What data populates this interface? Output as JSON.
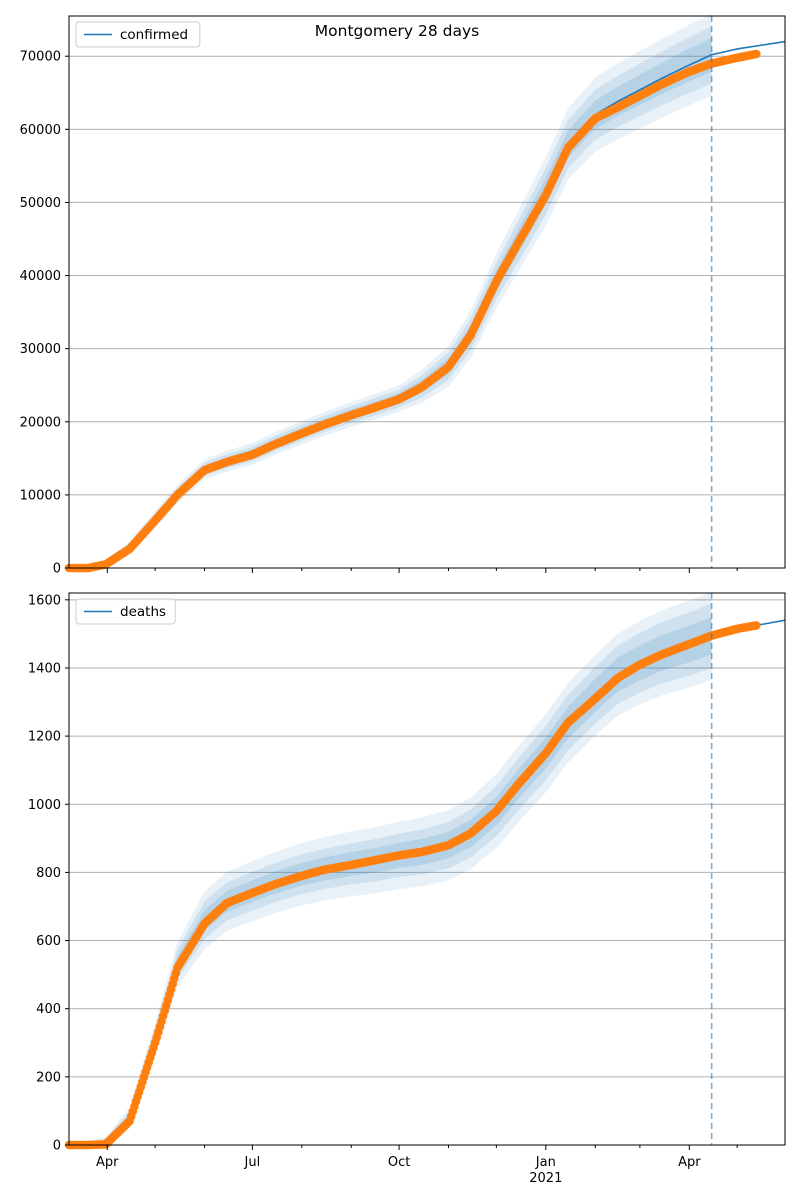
{
  "figure": {
    "title": "Montgomery 28 days"
  },
  "colors": {
    "fit_line": "#1f77b4",
    "observed": "#ff7f0e",
    "band": "#1f77b4",
    "grid": "#b0b0b0",
    "forecast_marker": "#1f77b4"
  },
  "x_axis": {
    "range": [
      "2020-03-08",
      "2021-05-31"
    ],
    "major_ticks": [
      {
        "date": "2020-04-01",
        "label": "Apr",
        "sublabel": ""
      },
      {
        "date": "2020-07-01",
        "label": "Jul",
        "sublabel": ""
      },
      {
        "date": "2020-10-01",
        "label": "Oct",
        "sublabel": ""
      },
      {
        "date": "2021-01-01",
        "label": "Jan",
        "sublabel": "2021"
      },
      {
        "date": "2021-04-01",
        "label": "Apr",
        "sublabel": ""
      }
    ],
    "minor_ticks": [
      "2020-05-01",
      "2020-06-01",
      "2020-08-01",
      "2020-09-01",
      "2020-11-01",
      "2020-12-01",
      "2021-02-01",
      "2021-03-01",
      "2021-05-01"
    ],
    "forecast_start": "2021-04-15"
  },
  "chart_data": [
    {
      "type": "line",
      "legend": {
        "label": "confirmed",
        "location": "upper left"
      },
      "ylim": [
        0,
        75500
      ],
      "yticks": [
        0,
        10000,
        20000,
        30000,
        40000,
        50000,
        60000,
        70000
      ],
      "grid": "horizontal",
      "fit_line": {
        "x": [
          "2020-03-08",
          "2020-03-31",
          "2020-04-15",
          "2020-05-01",
          "2020-05-15",
          "2020-06-01",
          "2020-06-15",
          "2020-07-01",
          "2020-07-15",
          "2020-08-01",
          "2020-08-15",
          "2020-09-01",
          "2020-09-15",
          "2020-10-01",
          "2020-10-15",
          "2020-11-01",
          "2020-11-15",
          "2020-12-01",
          "2020-12-15",
          "2021-01-01",
          "2021-01-15",
          "2021-02-01",
          "2021-02-15",
          "2021-03-01",
          "2021-03-15",
          "2021-04-01",
          "2021-04-15",
          "2021-05-01",
          "2021-05-31"
        ],
        "y": [
          0,
          600,
          2800,
          6600,
          10100,
          13500,
          14600,
          15600,
          17000,
          18500,
          19700,
          21000,
          22000,
          23200,
          24800,
          27600,
          32000,
          39300,
          44800,
          51500,
          58000,
          62000,
          63800,
          65400,
          67000,
          68800,
          70200,
          71000,
          72000
        ]
      },
      "band_halfwidths": {
        "x": [
          "2020-03-08",
          "2020-05-01",
          "2020-07-01",
          "2020-10-01",
          "2021-01-01",
          "2021-02-15",
          "2021-04-15"
        ],
        "inner": [
          0,
          400,
          600,
          700,
          1800,
          2000,
          2300
        ],
        "middle": [
          0,
          800,
          1000,
          1200,
          3200,
          3500,
          3900
        ],
        "outer": [
          0,
          1200,
          1500,
          1800,
          4700,
          5200,
          5600
        ]
      },
      "observed": {
        "x": [
          "2020-03-08",
          "2020-03-20",
          "2020-03-31",
          "2020-04-15",
          "2020-05-01",
          "2020-05-15",
          "2020-06-01",
          "2020-06-15",
          "2020-07-01",
          "2020-07-15",
          "2020-08-01",
          "2020-08-15",
          "2020-09-01",
          "2020-09-15",
          "2020-10-01",
          "2020-10-15",
          "2020-11-01",
          "2020-11-15",
          "2020-12-01",
          "2020-12-15",
          "2021-01-01",
          "2021-01-15",
          "2021-02-01",
          "2021-02-15",
          "2021-03-01",
          "2021-03-15",
          "2021-04-01",
          "2021-04-15",
          "2021-05-01",
          "2021-05-13"
        ],
        "y": [
          0,
          0,
          500,
          2600,
          6500,
          10000,
          13400,
          14500,
          15500,
          16900,
          18400,
          19600,
          20900,
          21900,
          23100,
          24700,
          27500,
          31900,
          39200,
          44600,
          51000,
          57500,
          61500,
          63000,
          64600,
          66200,
          67900,
          69000,
          69800,
          70300
        ]
      }
    },
    {
      "type": "line",
      "legend": {
        "label": "deaths",
        "location": "upper left"
      },
      "ylim": [
        0,
        1620
      ],
      "yticks": [
        0,
        200,
        400,
        600,
        800,
        1000,
        1200,
        1400,
        1600
      ],
      "grid": "horizontal",
      "fit_line": {
        "x": [
          "2020-03-08",
          "2020-03-31",
          "2020-04-15",
          "2020-05-01",
          "2020-05-15",
          "2020-06-01",
          "2020-06-15",
          "2020-07-01",
          "2020-07-15",
          "2020-08-01",
          "2020-08-15",
          "2020-09-01",
          "2020-09-15",
          "2020-10-01",
          "2020-10-15",
          "2020-11-01",
          "2020-11-15",
          "2020-12-01",
          "2020-12-15",
          "2021-01-01",
          "2021-01-15",
          "2021-02-01",
          "2021-02-15",
          "2021-03-01",
          "2021-03-15",
          "2021-04-01",
          "2021-04-15",
          "2021-05-01",
          "2021-05-31"
        ],
        "y": [
          0,
          5,
          80,
          310,
          530,
          660,
          715,
          745,
          770,
          795,
          810,
          825,
          835,
          850,
          860,
          880,
          915,
          980,
          1060,
          1150,
          1240,
          1320,
          1380,
          1415,
          1445,
          1470,
          1495,
          1515,
          1540
        ]
      },
      "band_halfwidths": {
        "x": [
          "2020-03-08",
          "2020-04-15",
          "2020-06-01",
          "2020-09-01",
          "2020-11-15",
          "2021-01-01",
          "2021-02-15",
          "2021-04-15"
        ],
        "inner": [
          0,
          10,
          30,
          35,
          40,
          45,
          50,
          55
        ],
        "middle": [
          0,
          20,
          55,
          60,
          70,
          80,
          85,
          95
        ],
        "outer": [
          0,
          30,
          85,
          95,
          105,
          115,
          120,
          130
        ]
      },
      "observed": {
        "x": [
          "2020-03-08",
          "2020-03-20",
          "2020-03-31",
          "2020-04-15",
          "2020-05-01",
          "2020-05-15",
          "2020-06-01",
          "2020-06-15",
          "2020-07-01",
          "2020-07-15",
          "2020-08-01",
          "2020-08-15",
          "2020-09-01",
          "2020-09-15",
          "2020-10-01",
          "2020-10-15",
          "2020-11-01",
          "2020-11-15",
          "2020-12-01",
          "2020-12-15",
          "2021-01-01",
          "2021-01-15",
          "2021-02-01",
          "2021-02-15",
          "2021-03-01",
          "2021-03-15",
          "2021-04-01",
          "2021-04-15",
          "2021-05-01",
          "2021-05-13"
        ],
        "y": [
          0,
          0,
          2,
          70,
          300,
          520,
          650,
          710,
          740,
          765,
          790,
          808,
          822,
          835,
          850,
          860,
          880,
          915,
          980,
          1060,
          1150,
          1240,
          1310,
          1370,
          1410,
          1440,
          1470,
          1495,
          1515,
          1525
        ]
      }
    }
  ]
}
